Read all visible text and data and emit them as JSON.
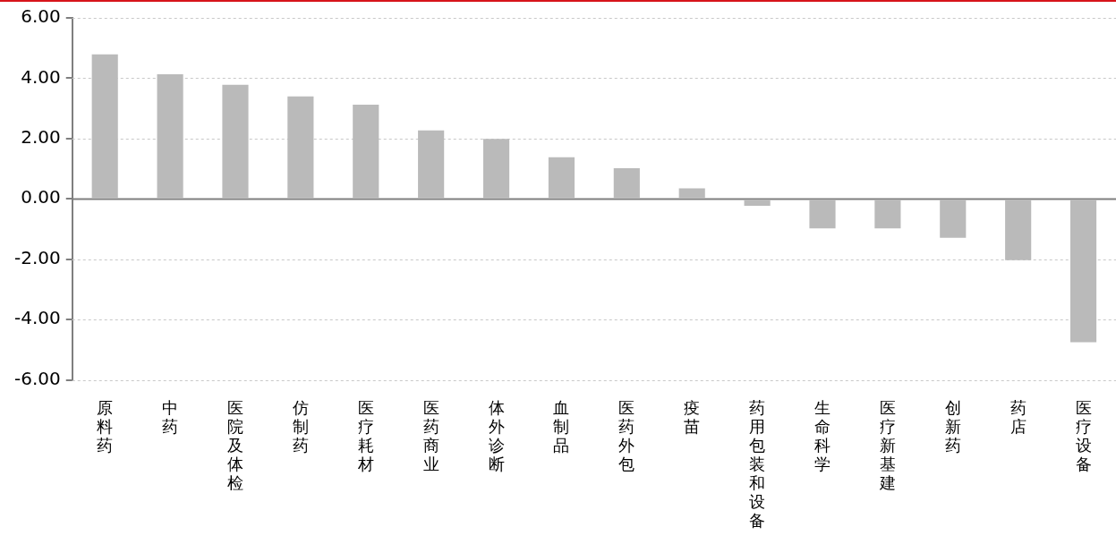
{
  "chart_data": {
    "type": "bar",
    "categories": [
      "原料药",
      "中药",
      "医院及体检",
      "仿制药",
      "医疗耗材",
      "医药商业",
      "体外诊断",
      "血制品",
      "医药外包",
      "疫苗",
      "药用包装和设备",
      "生命科学",
      "医疗新基建",
      "创新药",
      "药店",
      "医疗设备"
    ],
    "values": [
      4.79,
      4.13,
      3.78,
      3.4,
      3.12,
      2.27,
      1.99,
      1.38,
      1.02,
      0.35,
      -0.23,
      -0.98,
      -0.98,
      -1.29,
      -2.03,
      -4.75
    ],
    "color": "#bababa",
    "ylim": [
      -6,
      6
    ],
    "yticks": [
      {
        "value": -6,
        "label": "-6.00"
      },
      {
        "value": -4,
        "label": "-4.00"
      },
      {
        "value": -2,
        "label": "-2.00"
      },
      {
        "value": 0,
        "label": "0.00"
      },
      {
        "value": 2,
        "label": "2.00"
      },
      {
        "value": 4,
        "label": "4.00"
      },
      {
        "value": 6,
        "label": "6.00"
      }
    ],
    "grid": "y",
    "legend": false
  }
}
